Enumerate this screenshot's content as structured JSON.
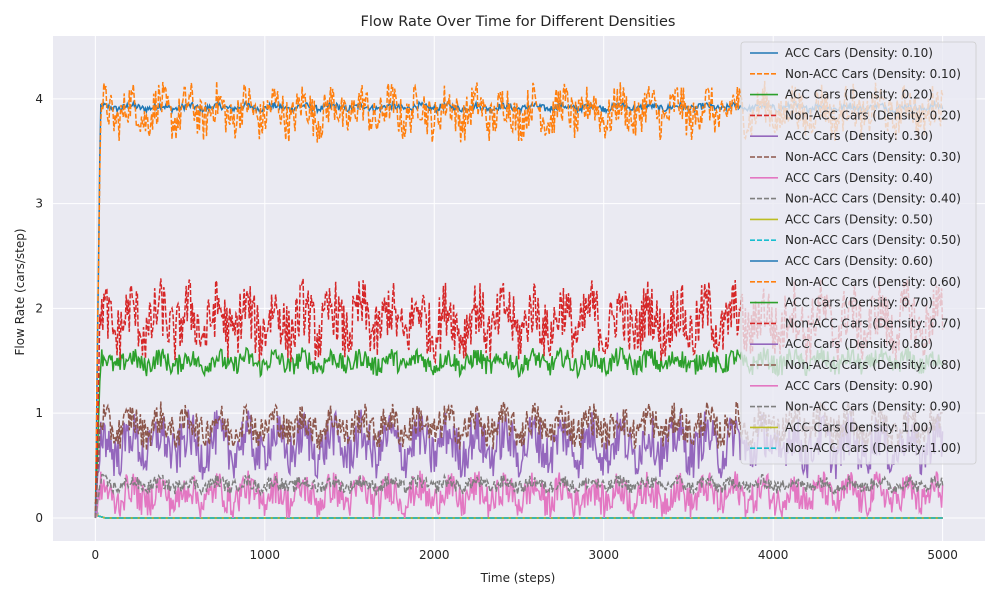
{
  "chart_data": {
    "type": "line",
    "title": "Flow Rate Over Time for Different Densities",
    "xlabel": "Time (steps)",
    "ylabel": "Flow Rate (cars/step)",
    "xlim": [
      -250,
      5250
    ],
    "ylim": [
      -0.22,
      4.6
    ],
    "xticks": [
      0,
      1000,
      2000,
      3000,
      4000,
      5000
    ],
    "yticks": [
      0,
      1,
      2,
      3,
      4
    ],
    "grid": true,
    "legend": "upper right",
    "colors": {
      "background": "#eaeaf2",
      "grid": "#ffffff",
      "blue": "#1f77b4",
      "orange": "#ff7f0e",
      "green": "#2ca02c",
      "red": "#d62728",
      "purple": "#9467bd",
      "brown": "#8c564b",
      "pink": "#e377c2",
      "gray": "#7f7f7f",
      "olive": "#bcbd22",
      "cyan": "#17becf"
    },
    "x_max": 5000,
    "series": [
      {
        "name": "ACC Cars (Density: 0.10)",
        "color": "#1f77b4",
        "dash": false,
        "mean": 3.92,
        "amplitude": 0.04
      },
      {
        "name": "Non-ACC Cars (Density: 0.10)",
        "color": "#ff7f0e",
        "dash": true,
        "mean": 3.88,
        "amplitude": 0.25
      },
      {
        "name": "ACC Cars (Density: 0.20)",
        "color": "#2ca02c",
        "dash": false,
        "mean": 0.0,
        "amplitude": 0.0
      },
      {
        "name": "Non-ACC Cars (Density: 0.20)",
        "color": "#d62728",
        "dash": true,
        "mean": 0.0,
        "amplitude": 0.0
      },
      {
        "name": "ACC Cars (Density: 0.30)",
        "color": "#9467bd",
        "dash": false,
        "mean": 0.0,
        "amplitude": 0.0
      },
      {
        "name": "Non-ACC Cars (Density: 0.30)",
        "color": "#8c564b",
        "dash": true,
        "mean": 0.0,
        "amplitude": 0.0
      },
      {
        "name": "ACC Cars (Density: 0.40)",
        "color": "#e377c2",
        "dash": false,
        "mean": 0.0,
        "amplitude": 0.0
      },
      {
        "name": "Non-ACC Cars (Density: 0.40)",
        "color": "#7f7f7f",
        "dash": true,
        "mean": 0.0,
        "amplitude": 0.0
      },
      {
        "name": "ACC Cars (Density: 0.50)",
        "color": "#bcbd22",
        "dash": false,
        "mean": 0.0,
        "amplitude": 0.0
      },
      {
        "name": "Non-ACC Cars (Density: 0.50)",
        "color": "#17becf",
        "dash": true,
        "mean": 0.0,
        "amplitude": 0.0
      },
      {
        "name": "ACC Cars (Density: 0.60)",
        "color": "#1f77b4",
        "dash": false,
        "mean": 0.0,
        "amplitude": 0.0
      },
      {
        "name": "Non-ACC Cars (Density: 0.60)",
        "color": "#ff7f0e",
        "dash": true,
        "mean": 0.0,
        "amplitude": 0.0
      },
      {
        "name": "ACC Cars (Density: 0.70)",
        "color": "#2ca02c",
        "dash": false,
        "mean": 1.49,
        "amplitude": 0.12
      },
      {
        "name": "Non-ACC Cars (Density: 0.70)",
        "color": "#d62728",
        "dash": true,
        "mean": 1.88,
        "amplitude": 0.35
      },
      {
        "name": "ACC Cars (Density: 0.80)",
        "color": "#9467bd",
        "dash": false,
        "mean": 0.7,
        "amplitude": 0.28
      },
      {
        "name": "Non-ACC Cars (Density: 0.80)",
        "color": "#8c564b",
        "dash": true,
        "mean": 0.88,
        "amplitude": 0.2
      },
      {
        "name": "ACC Cars (Density: 0.90)",
        "color": "#e377c2",
        "dash": false,
        "mean": 0.22,
        "amplitude": 0.2
      },
      {
        "name": "Non-ACC Cars (Density: 0.90)",
        "color": "#7f7f7f",
        "dash": true,
        "mean": 0.32,
        "amplitude": 0.08
      },
      {
        "name": "ACC Cars (Density: 1.00)",
        "color": "#bcbd22",
        "dash": false,
        "mean": 0.0,
        "amplitude": 0.0
      },
      {
        "name": "Non-ACC Cars (Density: 1.00)",
        "color": "#17becf",
        "dash": true,
        "mean": 0.0,
        "amplitude": 0.0
      }
    ]
  }
}
